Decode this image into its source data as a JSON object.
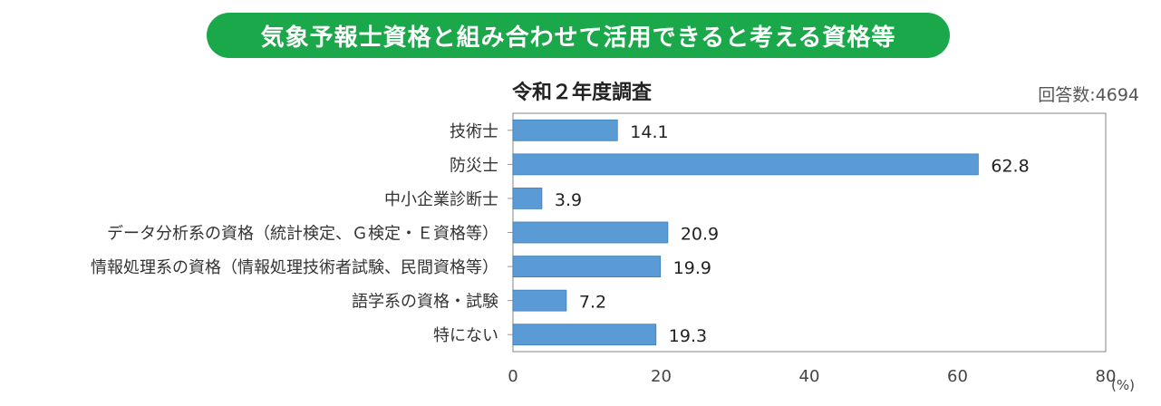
{
  "banner": {
    "title": "気象予報士資格と組み合わせて活用できると考える資格等"
  },
  "header": {
    "respondents": "回答数:4694"
  },
  "colors": {
    "banner_bg": "#1ba84a",
    "bar_fill": "#5b9bd5",
    "bar_stroke": "#3f7fb8"
  },
  "chart_data": {
    "type": "bar",
    "orientation": "horizontal",
    "title": "令和２年度調査",
    "categories": [
      "技術士",
      "防災士",
      "中小企業診断士",
      "データ分析系の資格（統計検定、Ｇ検定・Ｅ資格等）",
      "情報処理系の資格（情報処理技術者試験、民間資格等）",
      "語学系の資格・試験",
      "特にない"
    ],
    "values": [
      14.1,
      62.8,
      3.9,
      20.9,
      19.9,
      7.2,
      19.3
    ],
    "value_labels": [
      "14.1",
      "62.8",
      "3.9",
      "20.9",
      "19.9",
      "7.2",
      "19.3"
    ],
    "xlim": [
      0,
      80
    ],
    "xticks": [
      0,
      20,
      40,
      60,
      80
    ],
    "xunit": "(%)",
    "grid": false,
    "legend": "none"
  }
}
